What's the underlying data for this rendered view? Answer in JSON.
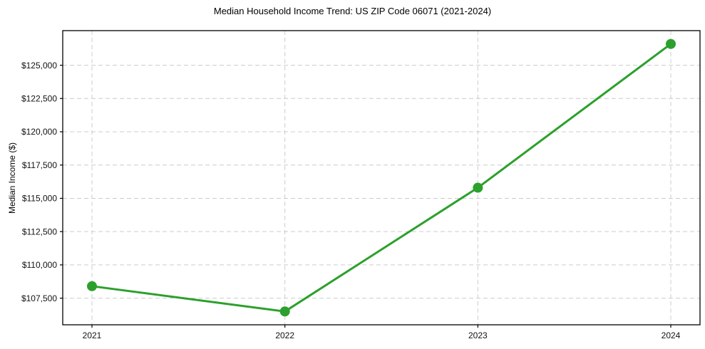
{
  "chart_data": {
    "type": "line",
    "title": "Median Household Income Trend: US ZIP Code 06071 (2021-2024)",
    "xlabel": "",
    "ylabel": "Median Income ($)",
    "categories": [
      "2021",
      "2022",
      "2023",
      "2024"
    ],
    "series": [
      {
        "name": "Median Household Income",
        "values": [
          108400,
          106500,
          115800,
          126600
        ]
      }
    ],
    "ylim": [
      105500,
      127600
    ],
    "yticks": [
      {
        "value": 107500,
        "label": "$107,500"
      },
      {
        "value": 110000,
        "label": "$110,000"
      },
      {
        "value": 112500,
        "label": "$112,500"
      },
      {
        "value": 115000,
        "label": "$115,000"
      },
      {
        "value": 117500,
        "label": "$117,500"
      },
      {
        "value": 120000,
        "label": "$120,000"
      },
      {
        "value": 122500,
        "label": "$122,500"
      },
      {
        "value": 125000,
        "label": "$125,000"
      }
    ],
    "grid": true,
    "legend": false,
    "line_color": "#2ca02c",
    "marker_color": "#2ca02c",
    "grid_color": "#cccccc",
    "axis_color": "#000000"
  }
}
